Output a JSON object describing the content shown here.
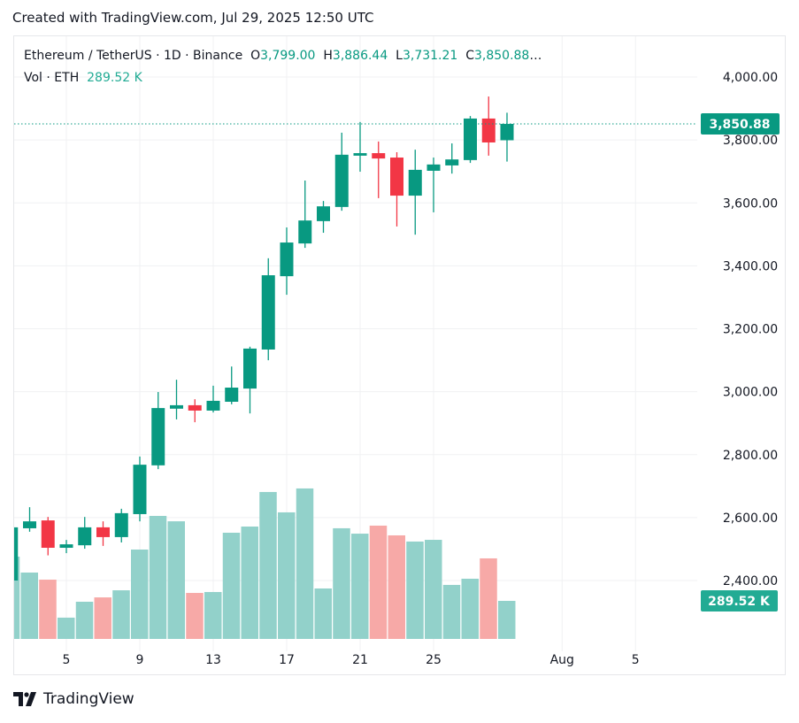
{
  "header": {
    "created": "Created with TradingView.com, Jul 29, 2025 12:50 UTC"
  },
  "legend": {
    "symbol": "Ethereum / TetherUS · 1D · Binance",
    "o_label": "O",
    "o": "3,799.00",
    "h_label": "H",
    "h": "3,886.44",
    "l_label": "L",
    "l": "3,731.21",
    "c_label": "C",
    "c": "3,850.88",
    "ellipsis": "…",
    "vol_label": "Vol · ETH",
    "vol": "289.52 K"
  },
  "logo": {
    "text": "TradingView"
  },
  "colors": {
    "up": "#089981",
    "down": "#f23645",
    "vol_up": "#92d1ca",
    "vol_down": "#f7a9a7",
    "grid": "#f0f1f3"
  },
  "chart_data": {
    "type": "candlestick",
    "title": "",
    "price_ticks": [
      "2,400.00",
      "2,600.00",
      "2,800.00",
      "3,000.00",
      "3,200.00",
      "3,400.00",
      "3,600.00",
      "3,800.00",
      "4,000.00"
    ],
    "price_tick_values": [
      2400,
      2600,
      2800,
      3000,
      3200,
      3400,
      3600,
      3800,
      4000
    ],
    "ylim": [
      2400,
      4000
    ],
    "x_ticks": [
      {
        "day": 5,
        "label": "5"
      },
      {
        "day": 9,
        "label": "9"
      },
      {
        "day": 13,
        "label": "13"
      },
      {
        "day": 17,
        "label": "17"
      },
      {
        "day": 21,
        "label": "21"
      },
      {
        "day": 25,
        "label": "25"
      },
      {
        "day": 32,
        "label": "Aug"
      },
      {
        "day": 36,
        "label": "5"
      }
    ],
    "last_price_label": "3,850.88",
    "last_price": 3850.88,
    "last_volume_label": "289.52 K",
    "grid": true,
    "candles": [
      {
        "date": "Jul 2",
        "o": 2400,
        "h": 2575,
        "l": 2395,
        "c": 2569,
        "v": 626
      },
      {
        "date": "Jul 3",
        "o": 2566,
        "h": 2633,
        "l": 2555,
        "c": 2588,
        "v": 505
      },
      {
        "date": "Jul 4",
        "o": 2591,
        "h": 2602,
        "l": 2480,
        "c": 2504,
        "v": 451
      },
      {
        "date": "Jul 5",
        "o": 2504,
        "h": 2529,
        "l": 2487,
        "c": 2515,
        "v": 162
      },
      {
        "date": "Jul 6",
        "o": 2512,
        "h": 2602,
        "l": 2501,
        "c": 2569,
        "v": 283
      },
      {
        "date": "Jul 7",
        "o": 2569,
        "h": 2588,
        "l": 2510,
        "c": 2538,
        "v": 316
      },
      {
        "date": "Jul 8",
        "o": 2538,
        "h": 2628,
        "l": 2521,
        "c": 2614,
        "v": 370
      },
      {
        "date": "Jul 9",
        "o": 2611,
        "h": 2794,
        "l": 2588,
        "c": 2768,
        "v": 680
      },
      {
        "date": "Jul 10",
        "o": 2766,
        "h": 2999,
        "l": 2754,
        "c": 2948,
        "v": 936
      },
      {
        "date": "Jul 11",
        "o": 2946,
        "h": 3038,
        "l": 2912,
        "c": 2957,
        "v": 895
      },
      {
        "date": "Jul 12",
        "o": 2957,
        "h": 2976,
        "l": 2903,
        "c": 2940,
        "v": 350
      },
      {
        "date": "Jul 13",
        "o": 2940,
        "h": 3019,
        "l": 2934,
        "c": 2971,
        "v": 357
      },
      {
        "date": "Jul 14",
        "o": 2968,
        "h": 3080,
        "l": 2960,
        "c": 3013,
        "v": 808
      },
      {
        "date": "Jul 15",
        "o": 3010,
        "h": 3143,
        "l": 2931,
        "c": 3137,
        "v": 855
      },
      {
        "date": "Jul 16",
        "o": 3134,
        "h": 3424,
        "l": 3100,
        "c": 3370,
        "v": 1118
      },
      {
        "date": "Jul 17",
        "o": 3367,
        "h": 3522,
        "l": 3308,
        "c": 3474,
        "v": 963
      },
      {
        "date": "Jul 18",
        "o": 3471,
        "h": 3671,
        "l": 3457,
        "c": 3544,
        "v": 1145
      },
      {
        "date": "Jul 19",
        "o": 3542,
        "h": 3606,
        "l": 3505,
        "c": 3589,
        "v": 384
      },
      {
        "date": "Jul 20",
        "o": 3587,
        "h": 3823,
        "l": 3575,
        "c": 3753,
        "v": 842
      },
      {
        "date": "Jul 21",
        "o": 3750,
        "h": 3857,
        "l": 3699,
        "c": 3758,
        "v": 801
      },
      {
        "date": "Jul 22",
        "o": 3758,
        "h": 3795,
        "l": 3615,
        "c": 3741,
        "v": 862
      },
      {
        "date": "Jul 23",
        "o": 3744,
        "h": 3761,
        "l": 3525,
        "c": 3623,
        "v": 788
      },
      {
        "date": "Jul 24",
        "o": 3623,
        "h": 3769,
        "l": 3499,
        "c": 3705,
        "v": 741
      },
      {
        "date": "Jul 25",
        "o": 3702,
        "h": 3744,
        "l": 3570,
        "c": 3722,
        "v": 754
      },
      {
        "date": "Jul 26",
        "o": 3719,
        "h": 3789,
        "l": 3693,
        "c": 3738,
        "v": 411
      },
      {
        "date": "Jul 27",
        "o": 3736,
        "h": 3876,
        "l": 3727,
        "c": 3868,
        "v": 458
      },
      {
        "date": "Jul 28",
        "o": 3868,
        "h": 3938,
        "l": 3750,
        "c": 3792,
        "v": 613
      },
      {
        "date": "Jul 29",
        "o": 3799,
        "h": 3886.44,
        "l": 3731.21,
        "c": 3850.88,
        "v": 289.52
      }
    ],
    "volume_unit": "K ETH"
  }
}
